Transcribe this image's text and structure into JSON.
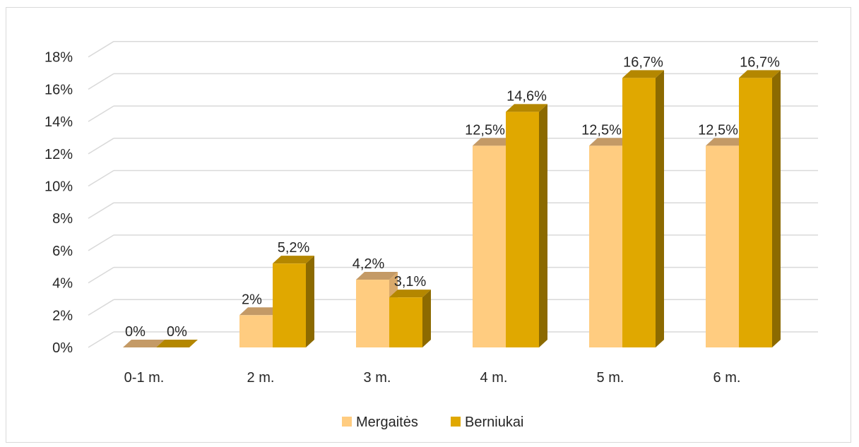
{
  "chart_data": {
    "type": "bar",
    "style": "3d-clustered-column",
    "categories": [
      "0-1 m.",
      "2 m.",
      "3 m.",
      "4 m.",
      "5 m.",
      "6 m."
    ],
    "series": [
      {
        "name": "Mergaitės",
        "values": [
          0,
          2,
          4.2,
          12.5,
          12.5,
          12.5
        ],
        "labels": [
          "0%",
          "2%",
          "4,2%",
          "12,5%",
          "12,5%",
          "12,5%"
        ],
        "color": "#FFCC80",
        "side_color": "#D9A96B",
        "top_color": "#C49A66"
      },
      {
        "name": "Berniukai",
        "values": [
          0,
          5.2,
          3.1,
          14.6,
          16.7,
          16.7
        ],
        "labels": [
          "0%",
          "5,2%",
          "3,1%",
          "14,6%",
          "16,7%",
          "16,7%"
        ],
        "color": "#E0A800",
        "side_color": "#8C6A00",
        "top_color": "#B48700"
      }
    ],
    "y_ticks": [
      "0%",
      "2%",
      "4%",
      "6%",
      "8%",
      "10%",
      "12%",
      "14%",
      "16%",
      "18%"
    ],
    "ylim": [
      0,
      18
    ],
    "grid": true,
    "legend_position": "bottom"
  }
}
